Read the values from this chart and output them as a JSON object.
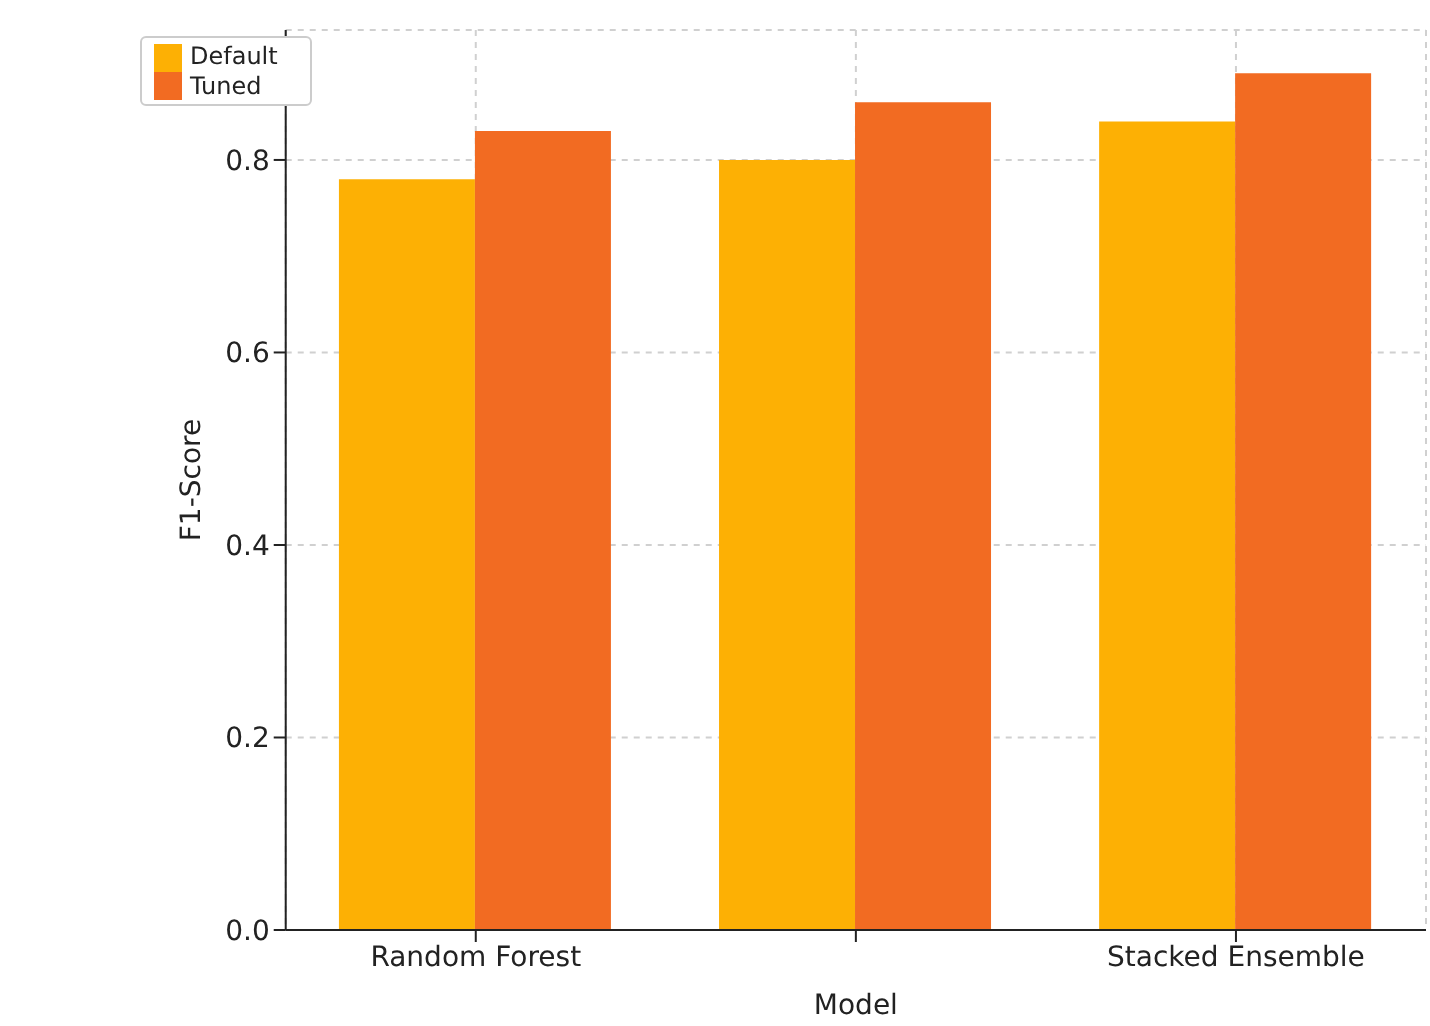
{
  "chart_data": {
    "type": "bar",
    "xlabel": "Model",
    "ylabel": "F1-Score",
    "categories": [
      "Random Forest",
      null,
      "Stacked Ensemble"
    ],
    "series": [
      {
        "name": "Default",
        "color": "#fdb004",
        "values": [
          0.78,
          0.8,
          0.84
        ]
      },
      {
        "name": "Tuned",
        "color": "#f26b22",
        "values": [
          0.83,
          0.86,
          0.89
        ]
      }
    ],
    "ylim": [
      0,
      0.935
    ],
    "yticks": [
      {
        "value": 0,
        "label": "0.0"
      },
      {
        "value": 0.2,
        "label": "0.2"
      },
      {
        "value": 0.4,
        "label": "0.4"
      },
      {
        "value": 0.6,
        "label": "0.6"
      },
      {
        "value": 0.8,
        "label": "0.8"
      }
    ],
    "grid": true,
    "legend": "top left"
  }
}
